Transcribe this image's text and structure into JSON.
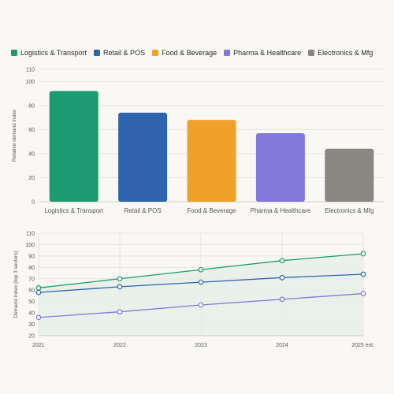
{
  "colors": {
    "background": "#f9f8f4",
    "grid": "#e6e4dc",
    "area_fill": "#e6efe9"
  },
  "legend": [
    {
      "label": "Logistics & Transport",
      "color": "#1c9b72"
    },
    {
      "label": "Retail & POS",
      "color": "#2f63ad"
    },
    {
      "label": "Food & Beverage",
      "color": "#f0a12a"
    },
    {
      "label": "Pharma & Healthcare",
      "color": "#8178db"
    },
    {
      "label": "Electronics & Mfg",
      "color": "#8a8780"
    }
  ],
  "chart_data": [
    {
      "type": "bar",
      "categories": [
        "Logistics & Transport",
        "Retail & POS",
        "Food & Beverage",
        "Pharma & Healthcare",
        "Electronics & Mfg"
      ],
      "values": [
        92,
        74,
        68,
        57,
        44
      ],
      "colors": [
        "#1c9b72",
        "#2f63ad",
        "#f0a12a",
        "#8178db",
        "#8a8780"
      ],
      "ylabel": "Relative demand index",
      "ylim": [
        0,
        110
      ],
      "yticks": [
        0,
        20,
        40,
        60,
        80,
        100,
        110
      ],
      "grid": true
    },
    {
      "type": "line",
      "x": [
        "2021",
        "2022",
        "2023",
        "2024",
        "2025 est."
      ],
      "series": [
        {
          "name": "Logistics & Transport",
          "values": [
            62,
            70,
            78,
            86,
            92
          ],
          "color": "#1c9b72"
        },
        {
          "name": "Retail & POS",
          "values": [
            58,
            63,
            67,
            71,
            74
          ],
          "color": "#2f63ad"
        },
        {
          "name": "Pharma & Healthcare",
          "values": [
            36,
            41,
            47,
            52,
            57
          ],
          "color": "#8178db"
        }
      ],
      "ylabel": "Demand index (top 3 sectors)",
      "ylim": [
        20,
        110
      ],
      "yticks": [
        20,
        30,
        40,
        50,
        60,
        70,
        80,
        90,
        100,
        110
      ],
      "grid": true,
      "area_under_top_series": true
    }
  ]
}
